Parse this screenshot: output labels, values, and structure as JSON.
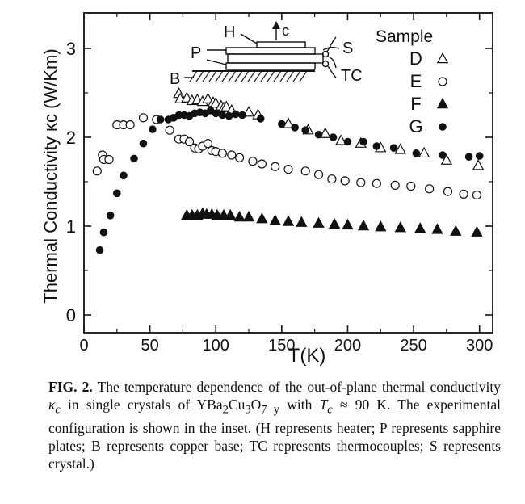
{
  "chart_data": {
    "type": "scatter",
    "xlabel": "T(K)",
    "ylabel": "Thermal Conductivity κc (W/Km)",
    "xlim": [
      0,
      310
    ],
    "ylim": [
      -0.2,
      3.4
    ],
    "x_ticks": [
      0,
      50,
      100,
      150,
      200,
      250,
      300
    ],
    "y_ticks": [
      0,
      1,
      2,
      3
    ],
    "grid": false,
    "legend_title": "Sample",
    "legend_placement": "top-right",
    "series": [
      {
        "name": "D",
        "marker": "open-triangle",
        "points": [
          [
            72,
            2.49
          ],
          [
            73,
            2.43
          ],
          [
            78,
            2.44
          ],
          [
            82,
            2.41
          ],
          [
            86,
            2.42
          ],
          [
            90,
            2.4
          ],
          [
            94,
            2.43
          ],
          [
            98,
            2.39
          ],
          [
            100,
            2.38
          ],
          [
            104,
            2.35
          ],
          [
            106,
            2.33
          ],
          [
            108,
            2.34
          ],
          [
            112,
            2.3
          ],
          [
            125,
            2.28
          ],
          [
            132,
            2.25
          ],
          [
            155,
            2.15
          ],
          [
            170,
            2.08
          ],
          [
            183,
            2.04
          ],
          [
            195,
            1.96
          ],
          [
            210,
            1.93
          ],
          [
            225,
            1.88
          ],
          [
            240,
            1.86
          ],
          [
            258,
            1.82
          ],
          [
            275,
            1.74
          ],
          [
            299,
            1.68
          ]
        ]
      },
      {
        "name": "E",
        "marker": "open-circle",
        "points": [
          [
            10,
            1.62
          ],
          [
            14,
            1.8
          ],
          [
            15,
            1.75
          ],
          [
            19,
            1.75
          ],
          [
            25,
            2.14
          ],
          [
            30,
            2.14
          ],
          [
            35,
            2.14
          ],
          [
            45,
            2.22
          ],
          [
            55,
            2.2
          ],
          [
            65,
            2.08
          ],
          [
            72,
            1.98
          ],
          [
            76,
            1.98
          ],
          [
            80,
            1.95
          ],
          [
            84,
            1.88
          ],
          [
            87,
            1.87
          ],
          [
            90,
            1.9
          ],
          [
            94,
            1.93
          ],
          [
            97,
            1.85
          ],
          [
            100,
            1.84
          ],
          [
            105,
            1.82
          ],
          [
            112,
            1.8
          ],
          [
            118,
            1.77
          ],
          [
            128,
            1.73
          ],
          [
            135,
            1.7
          ],
          [
            145,
            1.67
          ],
          [
            155,
            1.64
          ],
          [
            168,
            1.62
          ],
          [
            178,
            1.58
          ],
          [
            188,
            1.53
          ],
          [
            198,
            1.51
          ],
          [
            210,
            1.49
          ],
          [
            222,
            1.48
          ],
          [
            236,
            1.46
          ],
          [
            248,
            1.45
          ],
          [
            262,
            1.42
          ],
          [
            276,
            1.39
          ],
          [
            288,
            1.36
          ],
          [
            298,
            1.35
          ]
        ]
      },
      {
        "name": "F",
        "marker": "filled-triangle",
        "points": [
          [
            78,
            1.12
          ],
          [
            82,
            1.12
          ],
          [
            86,
            1.12
          ],
          [
            90,
            1.14
          ],
          [
            93,
            1.13
          ],
          [
            97,
            1.13
          ],
          [
            101,
            1.12
          ],
          [
            106,
            1.12
          ],
          [
            111,
            1.12
          ],
          [
            118,
            1.1
          ],
          [
            125,
            1.1
          ],
          [
            135,
            1.08
          ],
          [
            145,
            1.06
          ],
          [
            155,
            1.05
          ],
          [
            165,
            1.04
          ],
          [
            178,
            1.03
          ],
          [
            190,
            1.02
          ],
          [
            200,
            1.01
          ],
          [
            212,
            1
          ],
          [
            225,
            0.99
          ],
          [
            240,
            0.98
          ],
          [
            255,
            0.97
          ],
          [
            268,
            0.96
          ],
          [
            282,
            0.94
          ],
          [
            298,
            0.93
          ]
        ]
      },
      {
        "name": "G",
        "marker": "filled-circle",
        "points": [
          [
            12,
            0.73
          ],
          [
            15,
            0.93
          ],
          [
            20,
            1.12
          ],
          [
            25,
            1.37
          ],
          [
            30,
            1.57
          ],
          [
            38,
            1.76
          ],
          [
            45,
            1.93
          ],
          [
            52,
            2.09
          ],
          [
            58,
            2.2
          ],
          [
            64,
            2.2
          ],
          [
            68,
            2.22
          ],
          [
            72,
            2.25
          ],
          [
            76,
            2.25
          ],
          [
            80,
            2.24
          ],
          [
            84,
            2.27
          ],
          [
            88,
            2.28
          ],
          [
            92,
            2.27
          ],
          [
            96,
            2.3
          ],
          [
            100,
            2.27
          ],
          [
            105,
            2.25
          ],
          [
            110,
            2.24
          ],
          [
            115,
            2.26
          ],
          [
            120,
            2.25
          ],
          [
            134,
            2.21
          ],
          [
            150,
            2.15
          ],
          [
            160,
            2.11
          ],
          [
            168,
            2.08
          ],
          [
            178,
            2.03
          ],
          [
            189,
            2.0
          ],
          [
            200,
            1.95
          ],
          [
            212,
            1.95
          ],
          [
            222,
            1.9
          ],
          [
            235,
            1.88
          ],
          [
            252,
            1.82
          ],
          [
            272,
            1.8
          ],
          [
            292,
            1.78
          ],
          [
            300,
            1.79
          ]
        ]
      }
    ],
    "inset": {
      "labels": {
        "heater": "H",
        "axis": "c",
        "plates": "P",
        "base": "B",
        "crystal": "S",
        "thermocouples": "TC"
      }
    }
  },
  "caption": {
    "fig_label": "FIG. 2.",
    "text_1": " The temperature dependence of the out-of-plane thermal conductivity ",
    "kappa": "κ",
    "kappa_sub": "c",
    "text_2": " in single crystals of YBa",
    "ybco_sub1": "2",
    "ybco_mid": "Cu",
    "ybco_sub2": "3",
    "ybco_o": "O",
    "ybco_sub3": "7−y",
    "text_3": " with ",
    "tc": "T",
    "tc_sub": "c",
    "text_4": " ≈ 90 K. The experimental configuration is shown in the inset. (H represents heater; P represents sapphire plates; B represents copper base; TC represents thermocouples; S represents crystal.)"
  }
}
